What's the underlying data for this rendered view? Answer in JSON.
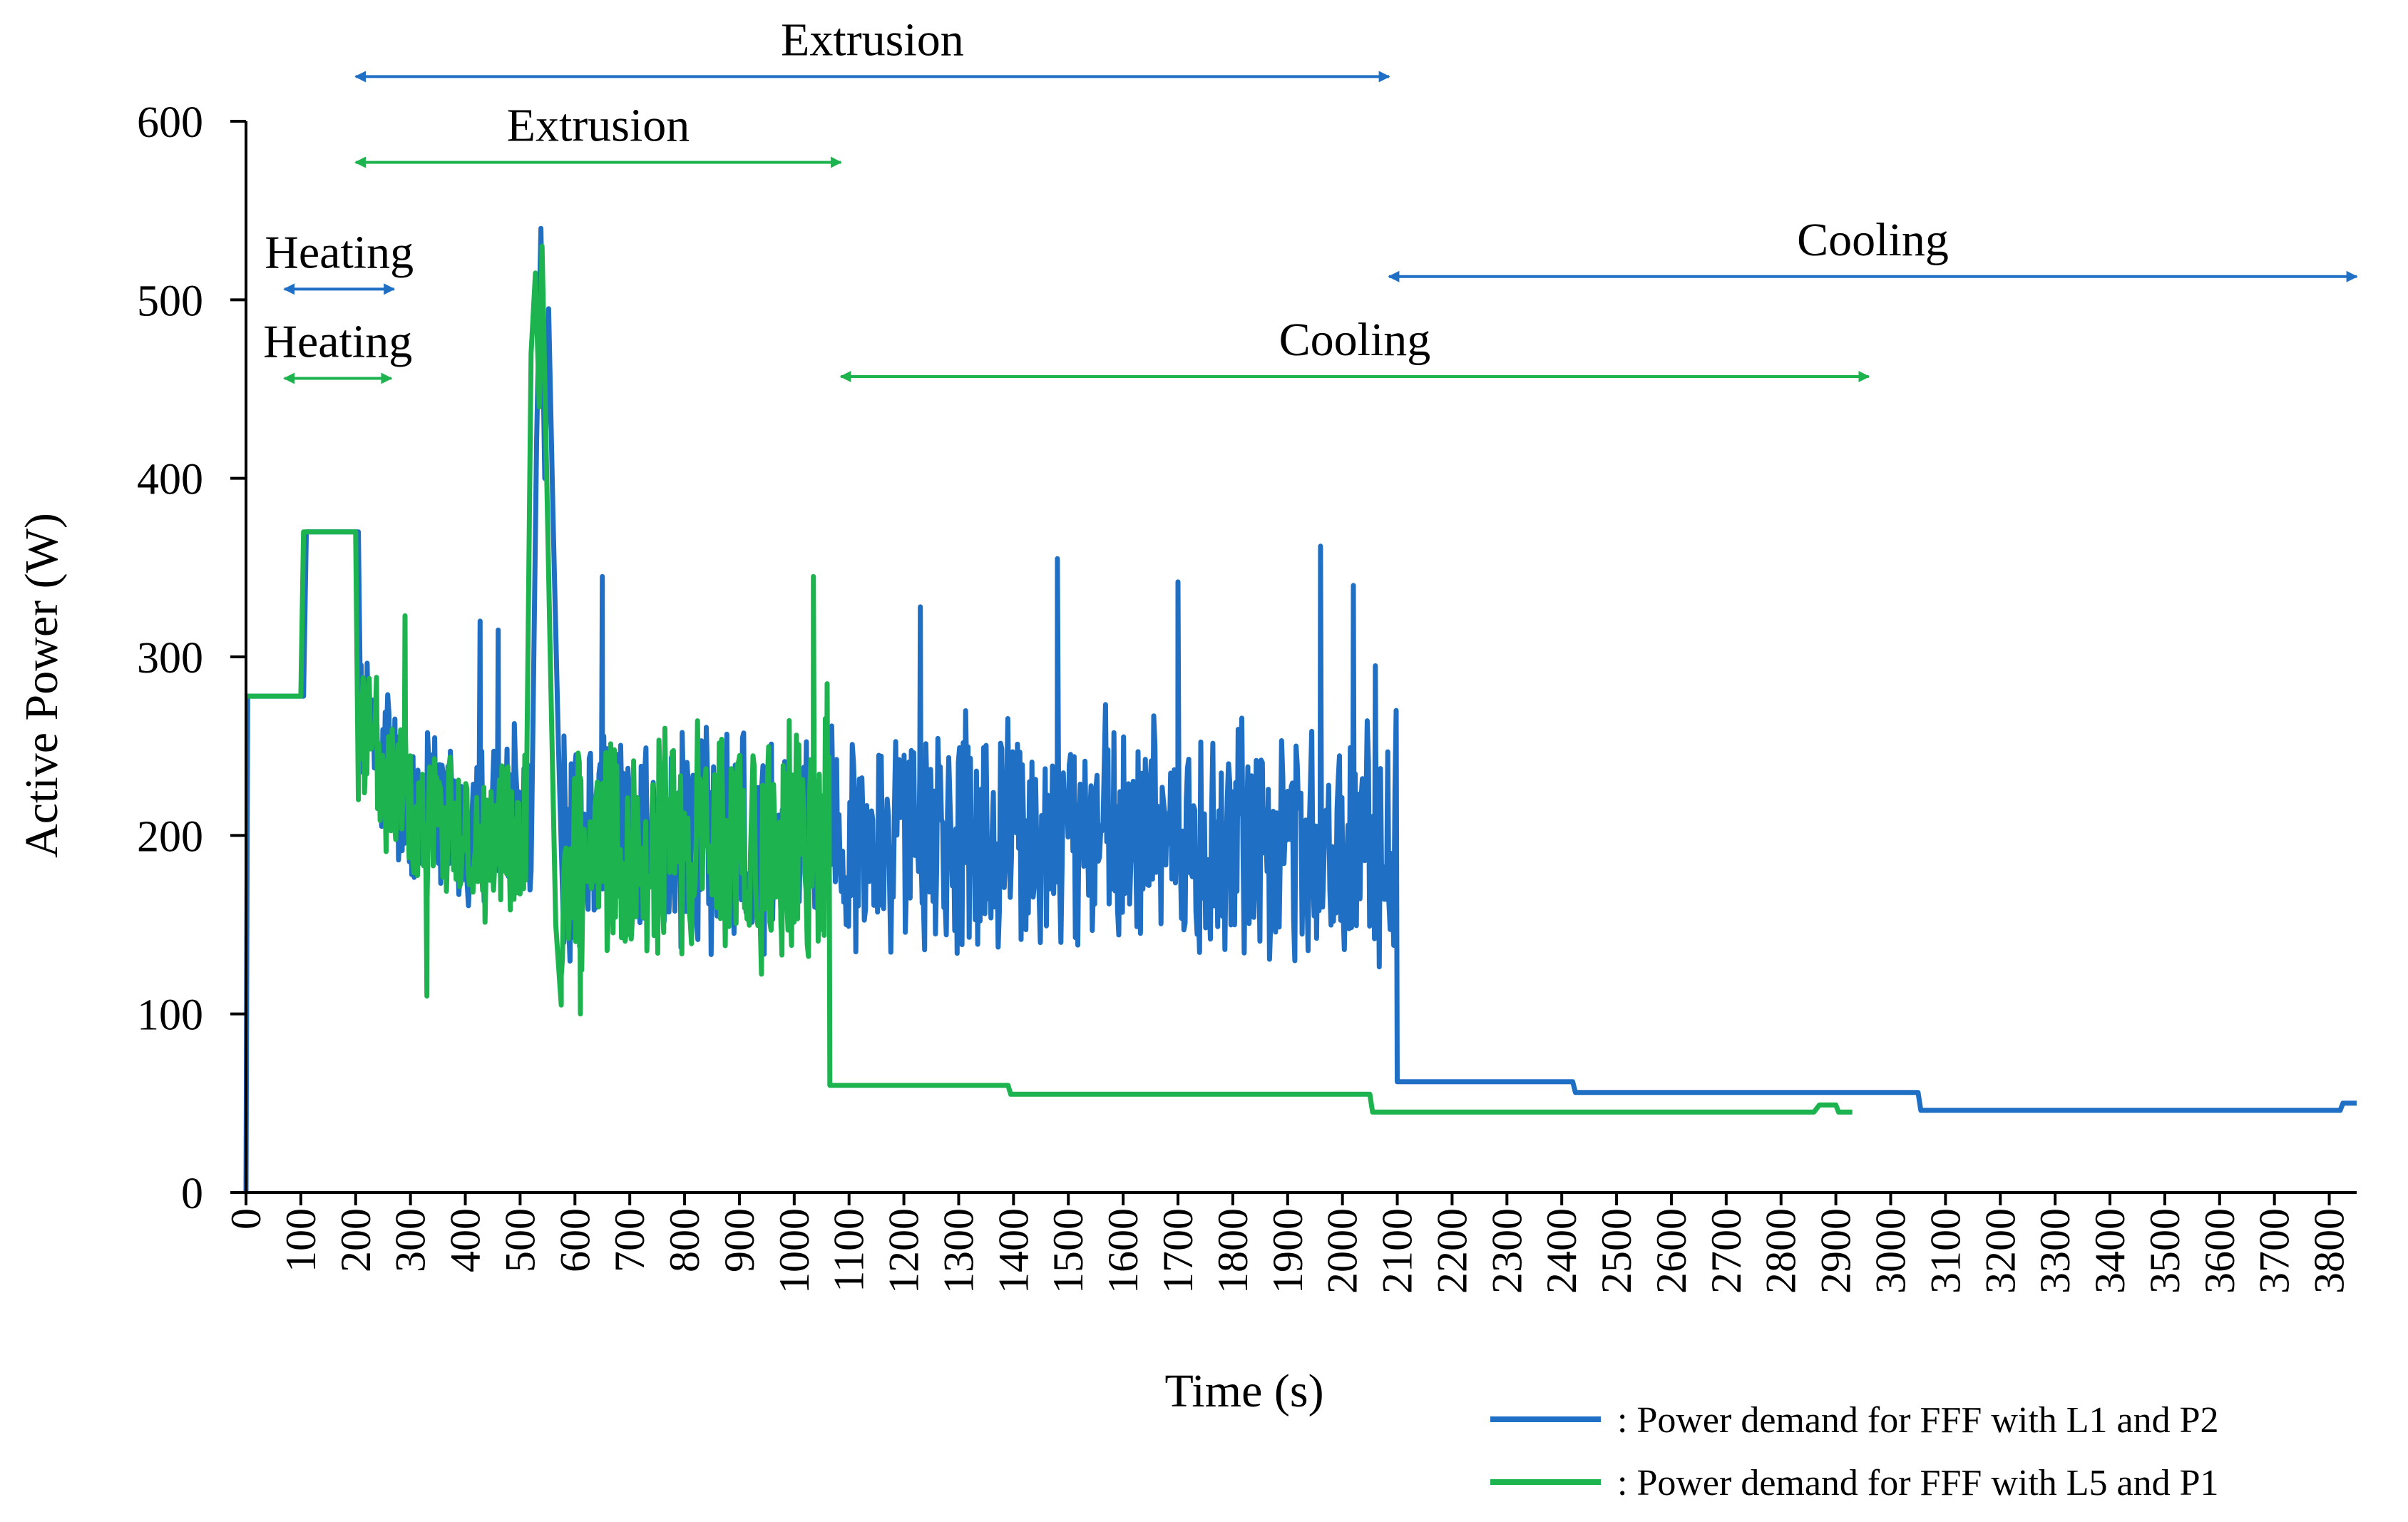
{
  "chart_data": {
    "type": "line",
    "title": "",
    "xlabel": "Time (s)",
    "ylabel": "Active Power (W)",
    "xlim": [
      0,
      3850
    ],
    "ylim": [
      0,
      600
    ],
    "x_ticks": [
      0,
      100,
      200,
      300,
      400,
      500,
      600,
      700,
      800,
      900,
      1000,
      1100,
      1200,
      1300,
      1400,
      1500,
      1600,
      1700,
      1800,
      1900,
      2000,
      2100,
      2200,
      2300,
      2400,
      2500,
      2600,
      2700,
      2800,
      2900,
      3000,
      3100,
      3200,
      3300,
      3400,
      3500,
      3600,
      3700,
      3800
    ],
    "y_ticks": [
      0,
      100,
      200,
      300,
      400,
      500,
      600
    ],
    "legend": [
      {
        "label": ": Power demand for FFF with L1 and P2",
        "color": "#1f6fc5"
      },
      {
        "label": ": Power demand for FFF with L5 and P1",
        "color": "#1db34f"
      }
    ],
    "series": [
      {
        "name": "Power demand for FFF with L1 and P2",
        "color": "#1f6fc5",
        "segments": [
          {
            "type": "points",
            "points": [
              [
                0,
                0
              ],
              [
                3,
                278
              ],
              [
                105,
                278
              ],
              [
                110,
                370
              ],
              [
                205,
                370
              ],
              [
                210,
                240
              ]
            ]
          },
          {
            "type": "noise",
            "x0": 210,
            "x1": 520,
            "seed": 11,
            "base": [
              [
                210,
                265
              ],
              [
                300,
                220
              ],
              [
                400,
                205
              ],
              [
                520,
                210
              ]
            ],
            "amp": 55
          },
          {
            "type": "points",
            "points": [
              [
                520,
                180
              ],
              [
                530,
                420
              ],
              [
                538,
                540
              ],
              [
                545,
                400
              ],
              [
                552,
                495
              ],
              [
                560,
                380
              ],
              [
                570,
                250
              ],
              [
                580,
                140
              ]
            ]
          },
          {
            "type": "noise",
            "x0": 580,
            "x1": 2098,
            "seed": 23,
            "base": [
              [
                580,
                195
              ],
              [
                800,
                200
              ],
              [
                1100,
                200
              ],
              [
                1500,
                200
              ],
              [
                2098,
                200
              ]
            ],
            "amp": 75
          },
          {
            "type": "points",
            "points": [
              [
                2098,
                270
              ],
              [
                2100,
                62
              ],
              [
                2420,
                62
              ],
              [
                2425,
                56
              ],
              [
                3050,
                56
              ],
              [
                3055,
                46
              ],
              [
                3820,
                46
              ],
              [
                3825,
                50
              ],
              [
                3850,
                50
              ]
            ]
          }
        ],
        "spikes": [
          [
            427,
            320
          ],
          [
            460,
            315
          ],
          [
            650,
            345
          ],
          [
            1230,
            328
          ],
          [
            1480,
            355
          ],
          [
            1700,
            342
          ],
          [
            1960,
            362
          ],
          [
            2020,
            340
          ],
          [
            2060,
            295
          ]
        ]
      },
      {
        "name": "Power demand for FFF with L5 and P1",
        "color": "#1db34f",
        "segments": [
          {
            "type": "points",
            "points": [
              [
                0,
                278
              ],
              [
                100,
                278
              ],
              [
                105,
                370
              ],
              [
                200,
                370
              ],
              [
                205,
                220
              ]
            ]
          },
          {
            "type": "noise",
            "x0": 205,
            "x1": 510,
            "seed": 37,
            "base": [
              [
                205,
                255
              ],
              [
                300,
                215
              ],
              [
                400,
                200
              ],
              [
                510,
                205
              ]
            ],
            "amp": 55
          },
          {
            "type": "points",
            "points": [
              [
                510,
                175
              ],
              [
                520,
                470
              ],
              [
                528,
                515
              ],
              [
                535,
                440
              ],
              [
                540,
                530
              ],
              [
                548,
                410
              ],
              [
                555,
                300
              ],
              [
                565,
                150
              ],
              [
                575,
                105
              ]
            ]
          },
          {
            "type": "noise",
            "x0": 575,
            "x1": 1065,
            "seed": 53,
            "base": [
              [
                575,
                185
              ],
              [
                800,
                195
              ],
              [
                1065,
                195
              ]
            ],
            "amp": 75
          },
          {
            "type": "points",
            "points": [
              [
                1035,
                345
              ],
              [
                1045,
                180
              ],
              [
                1060,
                285
              ],
              [
                1065,
                60
              ],
              [
                1390,
                60
              ],
              [
                1395,
                55
              ],
              [
                2050,
                55
              ],
              [
                2055,
                45
              ],
              [
                2860,
                45
              ],
              [
                2870,
                49
              ],
              [
                2900,
                49
              ],
              [
                2905,
                45
              ],
              [
                2930,
                45
              ]
            ]
          }
        ],
        "spikes": [
          [
            240,
            215
          ],
          [
            290,
            323
          ],
          [
            330,
            110
          ],
          [
            610,
            100
          ]
        ]
      }
    ],
    "annotations": [
      {
        "label": "Extrusion",
        "color": "#1f6fc5",
        "x_start": 200,
        "x_end": 2085,
        "level": 625
      },
      {
        "label": "Extrusion",
        "color": "#1db34f",
        "x_start": 200,
        "x_end": 1085,
        "level": 577
      },
      {
        "label": "Heating",
        "color": "#1f6fc5",
        "x_start": 70,
        "x_end": 270,
        "level": 506
      },
      {
        "label": "Heating",
        "color": "#1db34f",
        "x_start": 70,
        "x_end": 265,
        "level": 456
      },
      {
        "label": "Cooling",
        "color": "#1f6fc5",
        "x_start": 2085,
        "x_end": 3850,
        "level": 513
      },
      {
        "label": "Cooling",
        "color": "#1db34f",
        "x_start": 1085,
        "x_end": 2960,
        "level": 457
      }
    ]
  }
}
